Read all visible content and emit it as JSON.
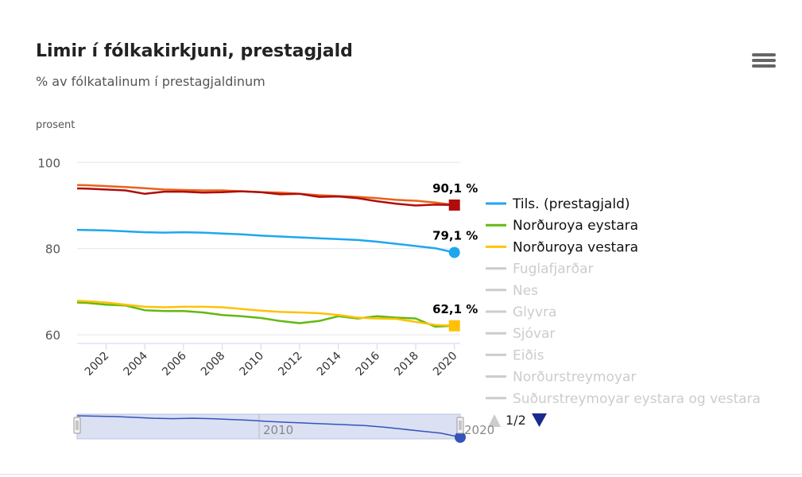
{
  "chart_data": {
    "type": "line",
    "title": "Limir í fólkakirkjuni, prestagjald",
    "subtitle": "% av fólkatalinum í prestagjaldinum",
    "ylabel": "prosent",
    "ylim": [
      58,
      103
    ],
    "xlim": [
      2000.5,
      2020.3
    ],
    "y_ticks": [
      "100",
      "80",
      "60"
    ],
    "y_tick_values": [
      100,
      80,
      60
    ],
    "x_ticks": [
      "2002",
      "2004",
      "2006",
      "2008",
      "2010",
      "2012",
      "2014",
      "2016",
      "2018",
      "2020"
    ],
    "x_tick_values": [
      2002,
      2004,
      2006,
      2008,
      2010,
      2012,
      2014,
      2016,
      2018,
      2020
    ],
    "grid": true,
    "legend_position": "right",
    "x": [
      2000,
      2001,
      2002,
      2003,
      2004,
      2005,
      2006,
      2007,
      2008,
      2009,
      2010,
      2011,
      2012,
      2013,
      2014,
      2015,
      2016,
      2017,
      2018,
      2019,
      2020
    ],
    "series": [
      {
        "name": "Tils. (prestagjald)",
        "color": "#1ea7ef",
        "visible": true,
        "marker": "circle",
        "end_label": "79,1 %",
        "values": [
          84.4,
          84.3,
          84.2,
          84.0,
          83.8,
          83.7,
          83.8,
          83.7,
          83.5,
          83.3,
          83.0,
          82.8,
          82.6,
          82.4,
          82.2,
          82.0,
          81.6,
          81.1,
          80.6,
          80.1,
          79.1
        ]
      },
      {
        "name": "Norðuroya eystara",
        "color": "#60ba10",
        "visible": true,
        "marker": "none",
        "end_label": "",
        "values": [
          67.6,
          67.4,
          67.0,
          66.8,
          65.7,
          65.5,
          65.5,
          65.2,
          64.6,
          64.3,
          63.9,
          63.2,
          62.7,
          63.2,
          64.3,
          63.8,
          64.3,
          64.0,
          63.8,
          61.9,
          62.1
        ]
      },
      {
        "name": "Norðuroya vestara",
        "color": "#ffc107",
        "visible": true,
        "marker": "square",
        "end_label": "62,1 %",
        "values": [
          68.0,
          67.8,
          67.5,
          67.0,
          66.5,
          66.4,
          66.5,
          66.5,
          66.4,
          66.0,
          65.6,
          65.3,
          65.2,
          65.0,
          64.6,
          64.0,
          63.8,
          63.7,
          63.0,
          62.3,
          62.1
        ]
      },
      {
        "name": "",
        "color": "#e8621a",
        "visible": true,
        "marker": "none",
        "end_label": "",
        "values": [
          94.8,
          94.7,
          94.5,
          94.3,
          94.0,
          93.7,
          93.6,
          93.5,
          93.5,
          93.3,
          93.1,
          93.0,
          92.7,
          92.4,
          92.2,
          92.0,
          91.7,
          91.3,
          91.1,
          90.7,
          90.1
        ]
      },
      {
        "name": "",
        "color": "#b00c0c",
        "visible": true,
        "marker": "square",
        "end_label": "90,1 %",
        "values": [
          94.0,
          93.9,
          93.7,
          93.5,
          92.7,
          93.2,
          93.2,
          93.0,
          93.1,
          93.3,
          93.1,
          92.6,
          92.7,
          92.0,
          92.1,
          91.7,
          91.0,
          90.4,
          90.0,
          90.2,
          90.1
        ]
      }
    ],
    "legend_hidden_items": [
      "Fuglafjarðar",
      "Nes",
      "Glyvra",
      "Sjóvar",
      "Eiðis",
      "Norðurstreymoyar",
      "Suðurstreymoyar eystara og vestara"
    ],
    "legend_page": "1/2",
    "navigator": {
      "label": "2010",
      "right_label": "2020",
      "values": [
        84.4,
        84.3,
        84.2,
        84.0,
        83.8,
        83.7,
        83.8,
        83.7,
        83.5,
        83.3,
        83.0,
        82.8,
        82.6,
        82.4,
        82.2,
        82.0,
        81.6,
        81.1,
        80.6,
        80.1,
        79.1
      ]
    }
  },
  "colors": {
    "legend_hidden": "#cccccc",
    "navigator_fill": "#dbe0f3",
    "navigator_line": "#3355bb",
    "arrow_active": "#1b2a8c",
    "arrow_inactive": "#cccccc"
  }
}
